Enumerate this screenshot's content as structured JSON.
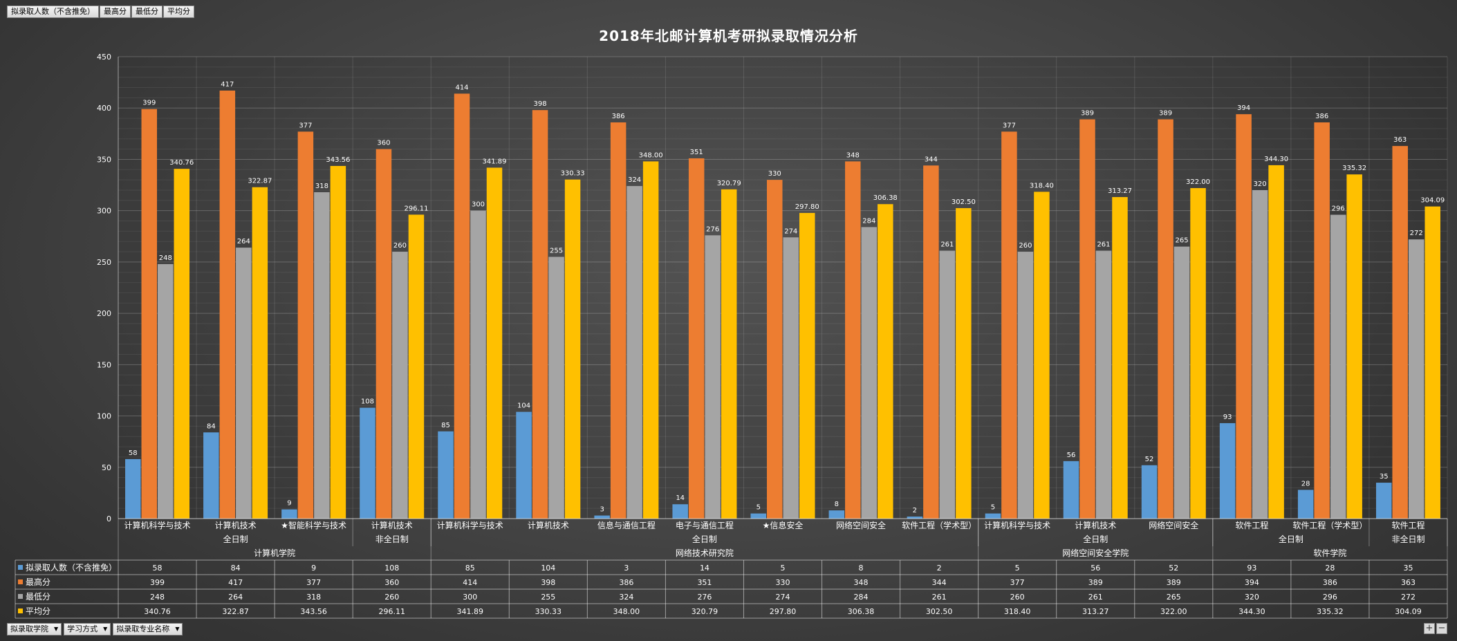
{
  "field_buttons": [
    "拟录取人数（不含推免）",
    "最高分",
    "最低分",
    "平均分"
  ],
  "axis_buttons": [
    "拟录取学院",
    "学习方式",
    "拟录取专业名称"
  ],
  "zoom": {
    "plus": "+",
    "minus": "−"
  },
  "colors": {
    "拟录取人数": "#5b9bd5",
    "最高分": "#ed7d31",
    "最低分": "#a5a5a5",
    "平均分": "#ffc000"
  },
  "chart_data": {
    "type": "bar",
    "title": "2018年北邮计算机考研拟录取情况分析",
    "ylim": [
      0,
      450
    ],
    "yticks": [
      0,
      50,
      100,
      150,
      200,
      250,
      300,
      350,
      400,
      450
    ],
    "grid": true,
    "categories": [
      "计算机科学与技术",
      "计算机技术",
      "★智能科学与技术",
      "计算机技术",
      "计算机科学与技术",
      "计算机技术",
      "信息与通信工程",
      "电子与通信工程",
      "★信息安全",
      "网络空间安全",
      "软件工程（学术型）",
      "计算机科学与技术",
      "计算机技术",
      "网络空间安全",
      "软件工程",
      "软件工程（学术型）",
      "软件工程"
    ],
    "mode_groups": [
      {
        "label": "全日制",
        "span": 3
      },
      {
        "label": "非全日制",
        "span": 1
      },
      {
        "label": "全日制",
        "span": 7
      },
      {
        "label": "全日制",
        "span": 3
      },
      {
        "label": "全日制",
        "span": 2
      },
      {
        "label": "非全日制",
        "span": 1
      }
    ],
    "college_groups": [
      {
        "label": "计算机学院",
        "span": 4
      },
      {
        "label": "网络技术研究院",
        "span": 7
      },
      {
        "label": "网络空间安全学院",
        "span": 3
      },
      {
        "label": "软件学院",
        "span": 3
      }
    ],
    "series": [
      {
        "name": "拟录取人数（不含推免）",
        "color": "#5b9bd5",
        "fmt": "int",
        "values": [
          58,
          84,
          9,
          108,
          85,
          104,
          3,
          14,
          5,
          8,
          2,
          5,
          56,
          52,
          93,
          28,
          35
        ]
      },
      {
        "name": "最高分",
        "color": "#ed7d31",
        "fmt": "int",
        "values": [
          399,
          417,
          377,
          360,
          414,
          398,
          386,
          351,
          330,
          348,
          344,
          377,
          389,
          389,
          394,
          386,
          363
        ]
      },
      {
        "name": "最低分",
        "color": "#a5a5a5",
        "fmt": "int",
        "values": [
          248,
          264,
          318,
          260,
          300,
          255,
          324,
          276,
          274,
          284,
          261,
          260,
          261,
          265,
          320,
          296,
          272
        ]
      },
      {
        "name": "平均分",
        "color": "#ffc000",
        "fmt": "2dp",
        "values": [
          340.76,
          322.87,
          343.56,
          296.11,
          341.89,
          330.33,
          348.0,
          320.79,
          297.8,
          306.38,
          302.5,
          318.4,
          313.27,
          322.0,
          344.3,
          335.32,
          304.09
        ]
      }
    ]
  }
}
